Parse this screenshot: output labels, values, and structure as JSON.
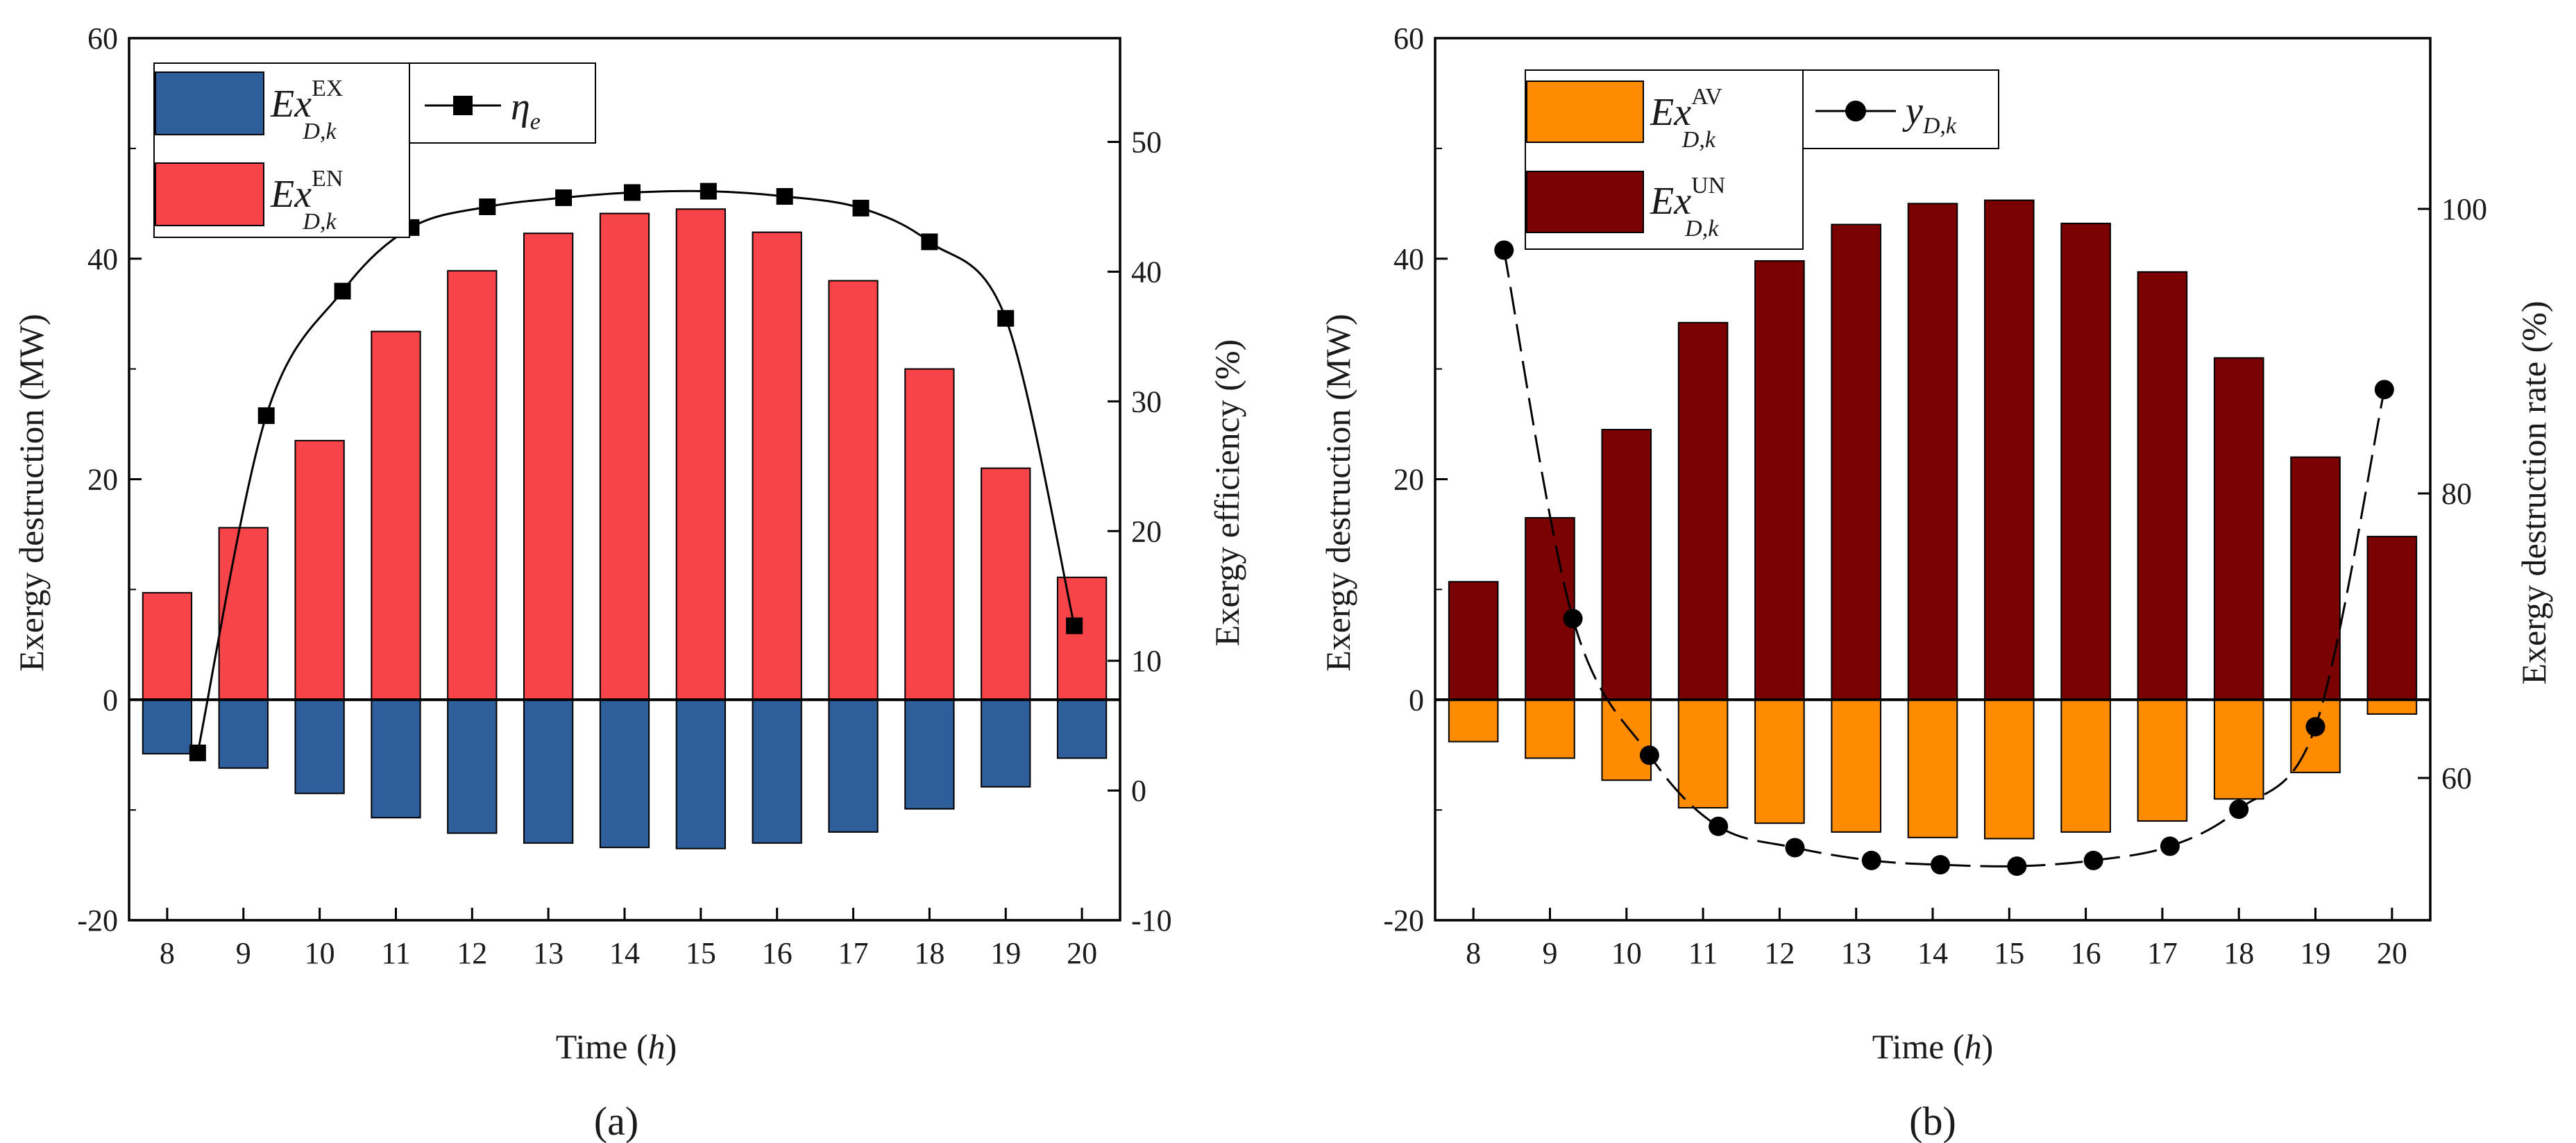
{
  "chart_data": [
    {
      "panel_label": "(a)",
      "type": "bar+line",
      "categories": [
        "8",
        "9",
        "10",
        "11",
        "12",
        "13",
        "14",
        "15",
        "16",
        "17",
        "18",
        "19",
        "20"
      ],
      "xlabel": "Time (h)",
      "ylabel_left": "Exergy destruction (MW)",
      "ylabel_right": "Exergy efficiency (%)",
      "left_axis": {
        "ylim": [
          -20,
          60
        ],
        "ticks": [
          "-20",
          "0",
          "20",
          "40",
          "60"
        ]
      },
      "right_axis": {
        "ylim": [
          -10,
          58
        ],
        "ticks": [
          "-10",
          "0",
          "10",
          "20",
          "30",
          "40",
          "50"
        ]
      },
      "series": [
        {
          "name": "Ex_D,k^EN",
          "kind": "bar",
          "color": "#f74449",
          "values": [
            9.7,
            15.6,
            23.5,
            33.4,
            38.9,
            42.3,
            44.1,
            44.5,
            42.4,
            38.0,
            30.0,
            21.0,
            11.1
          ]
        },
        {
          "name": "Ex_D,k^EX",
          "kind": "bar",
          "color": "#2e5f9a",
          "values": [
            -4.9,
            -6.2,
            -8.5,
            -10.7,
            -12.1,
            -13.0,
            -13.4,
            -13.5,
            -13.0,
            -12.0,
            -9.9,
            -7.9,
            -5.3
          ]
        },
        {
          "name": "η_e",
          "kind": "line",
          "axis": "right",
          "color": "#000000",
          "x": [
            8.4,
            9.3,
            10.3,
            11.2,
            12.2,
            13.2,
            14.1,
            15.1,
            16.1,
            17.1,
            18.0,
            19.0,
            19.9
          ],
          "values": [
            2.9,
            28.9,
            38.5,
            43.4,
            45.0,
            45.7,
            46.1,
            46.2,
            45.8,
            44.9,
            42.3,
            36.4,
            12.7
          ]
        }
      ],
      "legend": {
        "bar_ex": {
          "base": "Ex",
          "sup": "EX",
          "sub": "D,k"
        },
        "bar_en": {
          "base": "Ex",
          "sup": "EN",
          "sub": "D,k"
        },
        "line": {
          "base": "η",
          "sub": "e"
        }
      }
    },
    {
      "panel_label": "(b)",
      "type": "bar+line",
      "categories": [
        "8",
        "9",
        "10",
        "11",
        "12",
        "13",
        "14",
        "15",
        "16",
        "17",
        "18",
        "19",
        "20"
      ],
      "xlabel": "Time (h)",
      "ylabel_left": "Exergy destruction (MW)",
      "ylabel_right": "Exergy destruction rate (%)",
      "left_axis": {
        "ylim": [
          -20,
          60
        ],
        "ticks": [
          "-20",
          "0",
          "20",
          "40",
          "60"
        ]
      },
      "right_axis": {
        "ylim": [
          50,
          112
        ],
        "ticks": [
          "60",
          "80",
          "100"
        ]
      },
      "series": [
        {
          "name": "Ex_D,k^UN",
          "kind": "bar",
          "color": "#7a0203",
          "values": [
            10.7,
            16.5,
            24.5,
            34.2,
            39.8,
            43.1,
            45.0,
            45.3,
            43.2,
            38.8,
            31.0,
            22.0,
            14.8
          ]
        },
        {
          "name": "Ex_D,k^AV",
          "kind": "bar",
          "color": "#ff8c00",
          "values": [
            -3.8,
            -5.3,
            -7.3,
            -9.8,
            -11.2,
            -12.0,
            -12.5,
            -12.6,
            -12.0,
            -11.0,
            -9.0,
            -6.6,
            -1.3
          ]
        },
        {
          "name": "y_D,k",
          "kind": "line",
          "axis": "right",
          "color": "#000000",
          "x": [
            8.4,
            9.3,
            10.3,
            11.2,
            12.2,
            13.2,
            14.1,
            15.1,
            16.1,
            17.1,
            18.0,
            19.0,
            19.9
          ],
          "values": [
            97.1,
            71.2,
            61.6,
            56.6,
            55.1,
            54.2,
            53.9,
            53.8,
            54.2,
            55.2,
            57.8,
            63.6,
            87.3
          ]
        }
      ],
      "legend": {
        "bar_av": {
          "base": "Ex",
          "sup": "AV",
          "sub": "D,k"
        },
        "bar_un": {
          "base": "Ex",
          "sup": "UN",
          "sub": "D,k"
        },
        "line": {
          "base": "y",
          "sub": "D,k"
        }
      }
    }
  ]
}
